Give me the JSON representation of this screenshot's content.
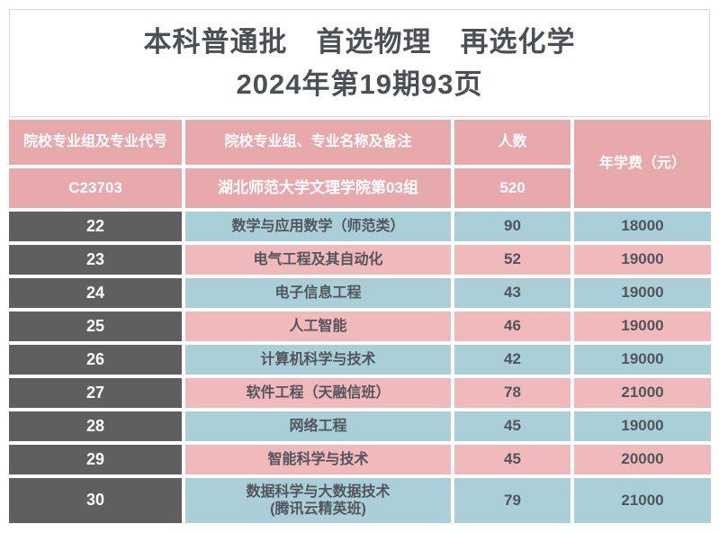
{
  "title": {
    "line1": "本科普通批　首选物理　再选化学",
    "line2": "2024年第19期93页"
  },
  "table": {
    "headers": {
      "col1": "院校专业组及专业代号",
      "col2": "院校专业组、专业名称及备注",
      "col3": "人数",
      "col4": "年学费（元）"
    },
    "group": {
      "code": "C23703",
      "name": "湖北师范大学文理学院第03组",
      "count": "520"
    },
    "rows": [
      {
        "code": "22",
        "name": "数学与应用数学（师范类）",
        "name_line2": "",
        "count": "90",
        "fee": "18000",
        "tone": "blue"
      },
      {
        "code": "23",
        "name": "电气工程及其自动化",
        "name_line2": "",
        "count": "52",
        "fee": "19000",
        "tone": "pink"
      },
      {
        "code": "24",
        "name": "电子信息工程",
        "name_line2": "",
        "count": "43",
        "fee": "19000",
        "tone": "blue"
      },
      {
        "code": "25",
        "name": "人工智能",
        "name_line2": "",
        "count": "46",
        "fee": "19000",
        "tone": "pink"
      },
      {
        "code": "26",
        "name": "计算机科学与技术",
        "name_line2": "",
        "count": "42",
        "fee": "19000",
        "tone": "blue"
      },
      {
        "code": "27",
        "name": "软件工程（天融信班）",
        "name_line2": "",
        "count": "78",
        "fee": "21000",
        "tone": "pink"
      },
      {
        "code": "28",
        "name": "网络工程",
        "name_line2": "",
        "count": "45",
        "fee": "19000",
        "tone": "blue"
      },
      {
        "code": "29",
        "name": "智能科学与技术",
        "name_line2": "",
        "count": "45",
        "fee": "20000",
        "tone": "pink"
      },
      {
        "code": "30",
        "name": "数据科学与大数据技术",
        "name_line2": "(腾讯云精英班)",
        "count": "79",
        "fee": "21000",
        "tone": "blue"
      }
    ]
  },
  "colors": {
    "header_pink": "#e8a9ad",
    "row_pink": "#f0b9bc",
    "row_blue": "#aacfd9",
    "row_number_gray": "#5f5f5f",
    "data_text": "#51555c",
    "title_text": "#4c4f56",
    "title_border": "#d9d9d9",
    "white": "#ffffff"
  }
}
